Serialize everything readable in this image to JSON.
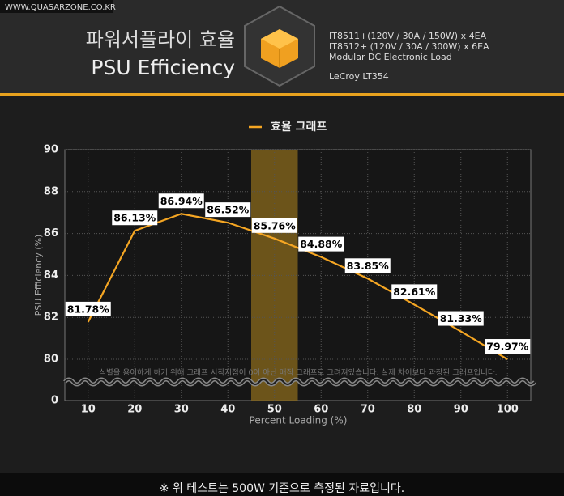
{
  "watermark": "WWW.QUASARZONE.CO.KR",
  "header": {
    "title_ko": "파워서플라이 효율",
    "title_en": "PSU Efficiency",
    "equipment": [
      "IT8511+(120V / 30A / 150W) x 4EA",
      "IT8512+ (120V / 30A / 300W) x 6EA",
      "Modular DC Electronic Load",
      "LeCroy LT354"
    ]
  },
  "footnote": "※ 위 테스트는 500W 기준으로 측정된 자료입니다.",
  "chart_data": {
    "type": "line",
    "note": "식별을 용이하게 하기 위해 그래프 시작지점이 0이 아닌 매직 그래프로 그려져있습니다. 실제 차이보다 과장된 그래프입니다.",
    "xlabel": "Percent Loading (%)",
    "ylabel": "PSU Efficiency (%)",
    "x": [
      10,
      20,
      30,
      40,
      50,
      60,
      70,
      80,
      90,
      100
    ],
    "series": [
      {
        "name": "효율 그래프",
        "color": "#f5a623",
        "values": [
          81.78,
          86.13,
          86.94,
          86.52,
          85.76,
          84.88,
          83.85,
          82.61,
          81.33,
          79.97
        ],
        "value_labels": [
          "81.78%",
          "86.13%",
          "86.94%",
          "86.52%",
          "85.76%",
          "84.88%",
          "83.85%",
          "82.61%",
          "81.33%",
          "79.97%"
        ]
      }
    ],
    "highlight_x": [
      45,
      55
    ],
    "highlight_color": "#8a6a1c",
    "xlim": [
      5,
      105
    ],
    "xticks": [
      10,
      20,
      30,
      40,
      50,
      60,
      70,
      80,
      90,
      100
    ],
    "ylim": [
      0,
      90
    ],
    "yticks": [
      0,
      80,
      82,
      84,
      86,
      88,
      90
    ],
    "grid": true
  }
}
